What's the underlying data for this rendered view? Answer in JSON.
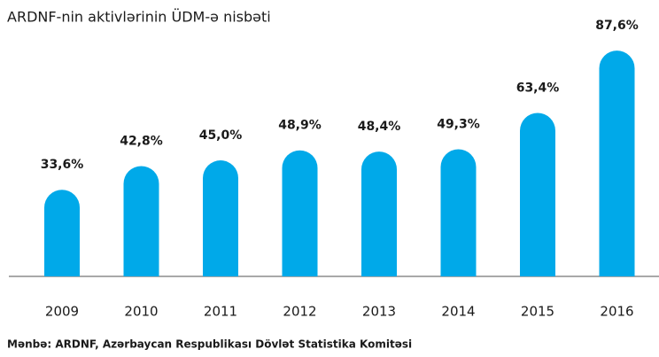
{
  "chart_data": {
    "type": "bar",
    "subtitle": "ARDNF-nin aktivlərinin ÜDM-ə nisbəti",
    "categories": [
      "2009",
      "2010",
      "2011",
      "2012",
      "2013",
      "2014",
      "2015",
      "2016"
    ],
    "values": [
      33.6,
      42.8,
      45.0,
      48.9,
      48.4,
      49.3,
      63.4,
      87.6
    ],
    "value_labels": [
      "33,6%",
      "42,8%",
      "45,0%",
      "48,9%",
      "48,4%",
      "49,3%",
      "63,4%",
      "87,6%"
    ],
    "color": "#00a9e9",
    "source": "Mənbə: ARDNF, Azərbaycan Respublikası Dövlət Statistika Komitəsi"
  }
}
